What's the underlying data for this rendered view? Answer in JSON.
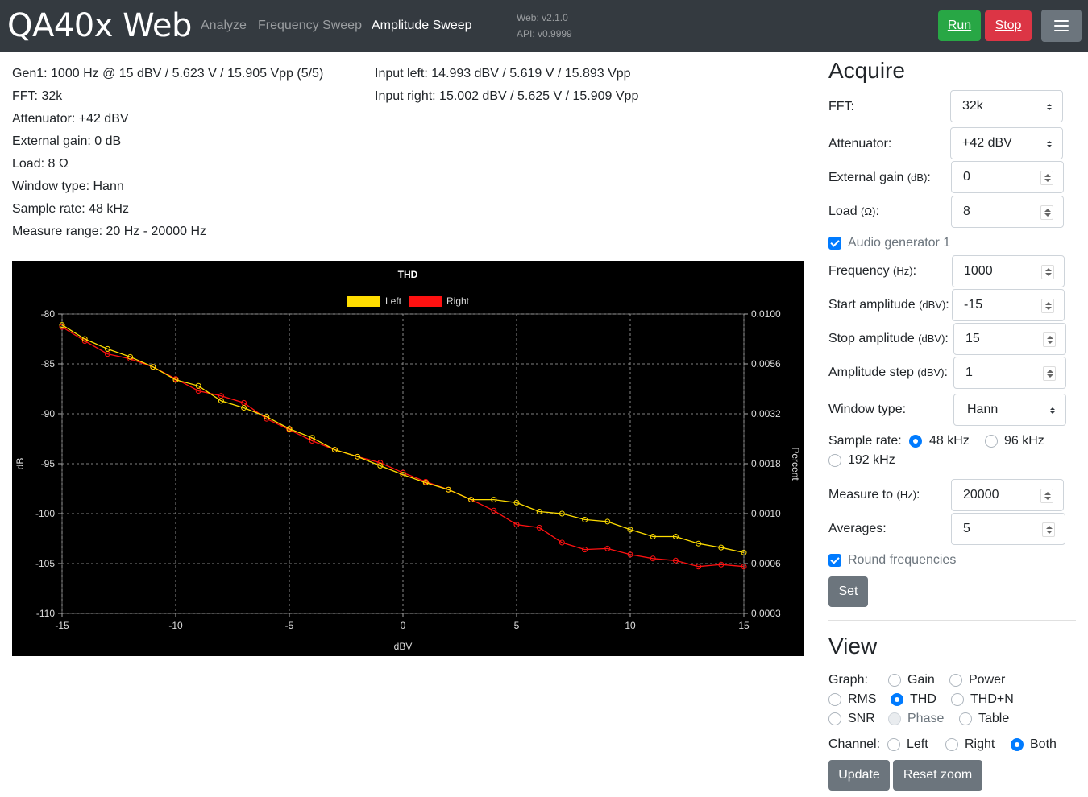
{
  "nav": {
    "brand": "QA40x Web",
    "links": [
      "Analyze",
      "Frequency Sweep",
      "Amplitude Sweep"
    ],
    "version_web": "Web: v2.1.0",
    "version_api": "API: v0.9999",
    "run_label": "Run",
    "stop_label": "Stop",
    "menu_icon": "hamburger-icon"
  },
  "info": {
    "left": [
      "Gen1: 1000 Hz @ 15 dBV / 5.623 V / 15.905 Vpp (5/5)",
      "FFT: 32k",
      "Attenuator: +42 dBV",
      "External gain: 0 dB",
      "Load: 8 Ω",
      "Window type: Hann",
      "Sample rate: 48 kHz",
      "Measure range: 20 Hz - 20000 Hz"
    ],
    "right": [
      "Input left: 14.993 dBV / 5.619 V / 15.893 Vpp",
      "Input right: 15.002 dBV / 5.625 V / 15.909 Vpp"
    ]
  },
  "acquire": {
    "title": "Acquire",
    "fft_label": "FFT:",
    "fft_value": "32k",
    "att_label": "Attenuator:",
    "att_value": "+42 dBV",
    "extgain_label": "External gain",
    "extgain_unit": "(dB)",
    "extgain_value": "0",
    "load_label": "Load",
    "load_unit": "(Ω)",
    "load_value": "8",
    "gen_label": "Audio generator 1",
    "freq_label": "Frequency",
    "freq_unit": "(Hz)",
    "freq_value": "1000",
    "start_label": "Start amplitude",
    "start_unit": "(dBV)",
    "start_value": "-15",
    "stop_label": "Stop amplitude",
    "stop_unit": "(dBV)",
    "stop_value": "15",
    "step_label": "Amplitude step",
    "step_unit": "(dBV)",
    "step_value": "1",
    "window_label": "Window type:",
    "window_value": "Hann",
    "sr_label": "Sample rate:",
    "sr_options": [
      "48 kHz",
      "96 kHz",
      "192 kHz"
    ],
    "sr_selected": "48 kHz",
    "measure_label": "Measure to",
    "measure_unit": "(Hz)",
    "measure_value": "20000",
    "avg_label": "Averages:",
    "avg_value": "5",
    "round_label": "Round frequencies",
    "set_label": "Set"
  },
  "view": {
    "title": "View",
    "graph_label": "Graph:",
    "graph_options": [
      "Gain",
      "Power",
      "RMS",
      "THD",
      "THD+N",
      "SNR",
      "Phase",
      "Table"
    ],
    "graph_selected": "THD",
    "graph_disabled": "Phase",
    "channel_label": "Channel:",
    "channel_options": [
      "Left",
      "Right",
      "Both"
    ],
    "channel_selected": "Both",
    "update_label": "Update",
    "reset_label": "Reset zoom"
  },
  "chart_data": {
    "type": "line",
    "title": "THD",
    "xlabel": "dBV",
    "ylabel": "dB",
    "y2label": "Percent",
    "xlim": [
      -15,
      15
    ],
    "ylim": [
      -110,
      -80
    ],
    "xticks": [
      "-15",
      "-10",
      "-5",
      "0",
      "5",
      "10",
      "15"
    ],
    "yticks": [
      "-80",
      "-85",
      "-90",
      "-95",
      "-100",
      "-105",
      "-110"
    ],
    "y2ticks": [
      "0.0100",
      "0.0056",
      "0.0032",
      "0.0018",
      "0.0010",
      "0.0006",
      "0.0003"
    ],
    "legend_position": "top",
    "grid": true,
    "x": [
      -15,
      -14,
      -13,
      -12,
      -11,
      -10,
      -9,
      -8,
      -7,
      -6,
      -5,
      -4,
      -3,
      -2,
      -1,
      0,
      1,
      2,
      3,
      4,
      5,
      6,
      7,
      8,
      9,
      10,
      11,
      12,
      13,
      14,
      15
    ],
    "series": [
      {
        "name": "Left",
        "color": "#ffdd00",
        "values": [
          -81.1,
          -82.5,
          -83.5,
          -84.3,
          -85.3,
          -86.6,
          -87.2,
          -88.7,
          -89.4,
          -90.3,
          -91.5,
          -92.4,
          -93.6,
          -94.3,
          -95.2,
          -96.1,
          -96.9,
          -97.6,
          -98.6,
          -98.6,
          -98.9,
          -99.8,
          -100.0,
          -100.6,
          -100.8,
          -101.6,
          -102.3,
          -102.3,
          -103.0,
          -103.4,
          -103.9
        ]
      },
      {
        "name": "Right",
        "color": "#ff1111",
        "values": [
          -81.3,
          -82.7,
          -84.0,
          -84.5,
          -85.3,
          -86.5,
          -87.7,
          -88.2,
          -88.9,
          -90.5,
          -91.6,
          -92.7,
          -93.6,
          -94.3,
          -94.9,
          -95.9,
          -96.8,
          -97.6,
          -98.6,
          -99.7,
          -101.1,
          -101.4,
          -102.9,
          -103.6,
          -103.5,
          -104.1,
          -104.5,
          -104.7,
          -105.3,
          -105.1,
          -105.3
        ]
      }
    ]
  }
}
